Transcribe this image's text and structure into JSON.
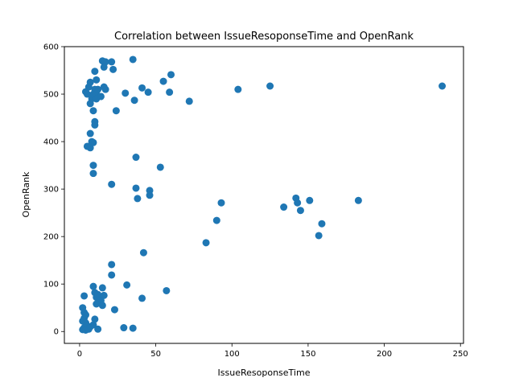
{
  "chart_data": {
    "type": "scatter",
    "title": "Correlation between IssueResoponseTime and OpenRank",
    "xlabel": "IssueResoponseTime",
    "ylabel": "OpenRank",
    "xlim": [
      -10,
      252
    ],
    "ylim": [
      -25,
      600
    ],
    "xticks": [
      0,
      50,
      100,
      150,
      200,
      250
    ],
    "yticks": [
      0,
      100,
      200,
      300,
      400,
      500,
      600
    ],
    "grid": false,
    "marker_color": "#1f77b4",
    "points": [
      {
        "x": 4,
        "y": 505
      },
      {
        "x": 5,
        "y": 500
      },
      {
        "x": 6,
        "y": 515
      },
      {
        "x": 7,
        "y": 525
      },
      {
        "x": 8,
        "y": 490
      },
      {
        "x": 7,
        "y": 480
      },
      {
        "x": 9,
        "y": 500
      },
      {
        "x": 10,
        "y": 510
      },
      {
        "x": 11,
        "y": 500
      },
      {
        "x": 11,
        "y": 490
      },
      {
        "x": 11,
        "y": 530
      },
      {
        "x": 10,
        "y": 548
      },
      {
        "x": 12,
        "y": 510
      },
      {
        "x": 14,
        "y": 495
      },
      {
        "x": 16,
        "y": 515
      },
      {
        "x": 15,
        "y": 570
      },
      {
        "x": 17,
        "y": 568
      },
      {
        "x": 16,
        "y": 557
      },
      {
        "x": 17,
        "y": 510
      },
      {
        "x": 21,
        "y": 568
      },
      {
        "x": 22,
        "y": 552
      },
      {
        "x": 9,
        "y": 465
      },
      {
        "x": 10,
        "y": 435
      },
      {
        "x": 10,
        "y": 442
      },
      {
        "x": 7,
        "y": 417
      },
      {
        "x": 5,
        "y": 390
      },
      {
        "x": 7,
        "y": 387
      },
      {
        "x": 8,
        "y": 400
      },
      {
        "x": 9,
        "y": 398
      },
      {
        "x": 9,
        "y": 350
      },
      {
        "x": 9,
        "y": 333
      },
      {
        "x": 24,
        "y": 465
      },
      {
        "x": 30,
        "y": 502
      },
      {
        "x": 35,
        "y": 573
      },
      {
        "x": 36,
        "y": 487
      },
      {
        "x": 41,
        "y": 513
      },
      {
        "x": 45,
        "y": 504
      },
      {
        "x": 55,
        "y": 527
      },
      {
        "x": 59,
        "y": 504
      },
      {
        "x": 60,
        "y": 541
      },
      {
        "x": 72,
        "y": 485
      },
      {
        "x": 104,
        "y": 510
      },
      {
        "x": 125,
        "y": 517
      },
      {
        "x": 238,
        "y": 517
      },
      {
        "x": 37,
        "y": 367
      },
      {
        "x": 53,
        "y": 346
      },
      {
        "x": 21,
        "y": 310
      },
      {
        "x": 37,
        "y": 302
      },
      {
        "x": 38,
        "y": 280
      },
      {
        "x": 46,
        "y": 297
      },
      {
        "x": 46,
        "y": 287
      },
      {
        "x": 93,
        "y": 271
      },
      {
        "x": 90,
        "y": 234
      },
      {
        "x": 83,
        "y": 187
      },
      {
        "x": 134,
        "y": 262
      },
      {
        "x": 142,
        "y": 281
      },
      {
        "x": 143,
        "y": 271
      },
      {
        "x": 145,
        "y": 255
      },
      {
        "x": 151,
        "y": 276
      },
      {
        "x": 157,
        "y": 202
      },
      {
        "x": 159,
        "y": 227
      },
      {
        "x": 183,
        "y": 276
      },
      {
        "x": 42,
        "y": 166
      },
      {
        "x": 21,
        "y": 141
      },
      {
        "x": 21,
        "y": 119
      },
      {
        "x": 31,
        "y": 98
      },
      {
        "x": 57,
        "y": 86
      },
      {
        "x": 41,
        "y": 70
      },
      {
        "x": 23,
        "y": 46
      },
      {
        "x": 9,
        "y": 95
      },
      {
        "x": 10,
        "y": 82
      },
      {
        "x": 11,
        "y": 72
      },
      {
        "x": 12,
        "y": 78
      },
      {
        "x": 13,
        "y": 70
      },
      {
        "x": 15,
        "y": 92
      },
      {
        "x": 16,
        "y": 76
      },
      {
        "x": 14,
        "y": 65
      },
      {
        "x": 11,
        "y": 58
      },
      {
        "x": 15,
        "y": 55
      },
      {
        "x": 3,
        "y": 75
      },
      {
        "x": 2,
        "y": 50
      },
      {
        "x": 3,
        "y": 40
      },
      {
        "x": 4,
        "y": 35
      },
      {
        "x": 3,
        "y": 28
      },
      {
        "x": 2,
        "y": 22
      },
      {
        "x": 4,
        "y": 18
      },
      {
        "x": 5,
        "y": 12
      },
      {
        "x": 3,
        "y": 8
      },
      {
        "x": 2,
        "y": 4
      },
      {
        "x": 4,
        "y": 3
      },
      {
        "x": 6,
        "y": 5
      },
      {
        "x": 7,
        "y": 10
      },
      {
        "x": 9,
        "y": 14
      },
      {
        "x": 10,
        "y": 26
      },
      {
        "x": 12,
        "y": 5
      },
      {
        "x": 29,
        "y": 8
      },
      {
        "x": 35,
        "y": 7
      }
    ]
  }
}
